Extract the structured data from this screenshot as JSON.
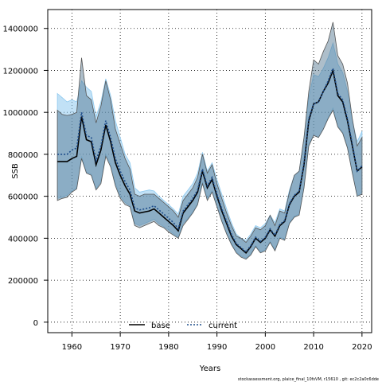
{
  "chart_data": {
    "type": "line",
    "title": "",
    "xlabel": "Years",
    "ylabel": "SSB",
    "xlim": [
      1955,
      2022
    ],
    "ylim": [
      -50000,
      1490000
    ],
    "xticks": [
      1960,
      1970,
      1980,
      1990,
      2000,
      2010,
      2020
    ],
    "yticks": [
      0,
      200000,
      400000,
      600000,
      800000,
      1000000,
      1200000,
      1400000
    ],
    "grid": true,
    "legend_position": "bottom",
    "footer_text": "stockassessment.org, plaice_final_10fsVM, r15610 , git: ec2c2a0c6dde",
    "years": [
      1957,
      1958,
      1959,
      1960,
      1961,
      1962,
      1963,
      1964,
      1965,
      1966,
      1967,
      1968,
      1969,
      1970,
      1971,
      1972,
      1973,
      1974,
      1975,
      1976,
      1977,
      1978,
      1979,
      1980,
      1981,
      1982,
      1983,
      1984,
      1985,
      1986,
      1987,
      1988,
      1989,
      1990,
      1991,
      1992,
      1993,
      1994,
      1995,
      1996,
      1997,
      1998,
      1999,
      2000,
      2001,
      2002,
      2003,
      2004,
      2005,
      2006,
      2007,
      2008,
      2009,
      2010,
      2011,
      2012,
      2013,
      2014,
      2015,
      2016,
      2017,
      2018,
      2019,
      2020
    ],
    "series": [
      {
        "name": "base",
        "color": "#000000",
        "dash": "solid",
        "band_color": "#4a6f8a",
        "values": [
          765000,
          765000,
          765000,
          780000,
          790000,
          980000,
          870000,
          860000,
          750000,
          820000,
          940000,
          860000,
          760000,
          700000,
          650000,
          610000,
          530000,
          520000,
          525000,
          530000,
          540000,
          520000,
          500000,
          480000,
          460000,
          435000,
          520000,
          550000,
          580000,
          620000,
          720000,
          640000,
          680000,
          600000,
          530000,
          470000,
          410000,
          370000,
          350000,
          330000,
          360000,
          400000,
          380000,
          400000,
          440000,
          410000,
          460000,
          480000,
          560000,
          600000,
          620000,
          750000,
          960000,
          1040000,
          1050000,
          1100000,
          1140000,
          1200000,
          1080000,
          1050000,
          960000,
          840000,
          720000,
          740000
        ],
        "lower": [
          580000,
          590000,
          595000,
          620000,
          635000,
          780000,
          710000,
          700000,
          630000,
          660000,
          790000,
          740000,
          650000,
          590000,
          560000,
          550000,
          460000,
          450000,
          460000,
          470000,
          480000,
          460000,
          450000,
          430000,
          415000,
          400000,
          460000,
          490000,
          520000,
          560000,
          660000,
          580000,
          620000,
          550000,
          480000,
          420000,
          370000,
          330000,
          310000,
          300000,
          320000,
          360000,
          330000,
          340000,
          380000,
          340000,
          400000,
          390000,
          470000,
          500000,
          510000,
          640000,
          840000,
          890000,
          880000,
          920000,
          970000,
          1010000,
          930000,
          900000,
          830000,
          710000,
          600000,
          610000
        ],
        "upper": [
          1010000,
          990000,
          985000,
          990000,
          1000000,
          1260000,
          1080000,
          1060000,
          950000,
          1030000,
          1150000,
          1060000,
          920000,
          850000,
          780000,
          730000,
          610000,
          600000,
          610000,
          610000,
          610000,
          590000,
          570000,
          550000,
          530000,
          500000,
          580000,
          610000,
          640000,
          690000,
          800000,
          710000,
          750000,
          660000,
          590000,
          520000,
          460000,
          410000,
          400000,
          380000,
          410000,
          450000,
          440000,
          460000,
          510000,
          460000,
          530000,
          520000,
          620000,
          700000,
          720000,
          880000,
          1100000,
          1250000,
          1230000,
          1290000,
          1340000,
          1430000,
          1270000,
          1230000,
          1140000,
          970000,
          840000,
          880000
        ]
      },
      {
        "name": "current",
        "color": "#1f4e8c",
        "dash": "dotted",
        "band_color": "#8ec9ef",
        "values": [
          800000,
          800000,
          800000,
          820000,
          830000,
          1000000,
          890000,
          880000,
          770000,
          840000,
          960000,
          880000,
          780000,
          720000,
          670000,
          630000,
          545000,
          535000,
          540000,
          545000,
          555000,
          535000,
          515000,
          495000,
          475000,
          445000,
          530000,
          560000,
          590000,
          630000,
          730000,
          650000,
          690000,
          610000,
          540000,
          480000,
          420000,
          375000,
          355000,
          335000,
          365000,
          405000,
          385000,
          405000,
          445000,
          415000,
          465000,
          485000,
          565000,
          605000,
          625000,
          760000,
          970000,
          1040000,
          1050000,
          1100000,
          1150000,
          1210000,
          1090000,
          1060000,
          970000,
          850000,
          720000,
          745000
        ],
        "lower": [
          590000,
          595000,
          605000,
          625000,
          640000,
          790000,
          715000,
          705000,
          635000,
          670000,
          800000,
          750000,
          660000,
          600000,
          570000,
          555000,
          470000,
          460000,
          470000,
          480000,
          490000,
          470000,
          455000,
          440000,
          420000,
          405000,
          470000,
          495000,
          525000,
          565000,
          665000,
          590000,
          625000,
          555000,
          485000,
          425000,
          375000,
          335000,
          315000,
          305000,
          325000,
          365000,
          335000,
          345000,
          385000,
          345000,
          405000,
          395000,
          475000,
          505000,
          515000,
          645000,
          850000,
          890000,
          880000,
          920000,
          975000,
          1020000,
          935000,
          905000,
          835000,
          715000,
          600000,
          620000
        ],
        "upper": [
          1090000,
          1070000,
          1050000,
          1060000,
          1050000,
          1150000,
          1120000,
          1100000,
          980000,
          1050000,
          1160000,
          1080000,
          960000,
          880000,
          800000,
          760000,
          640000,
          620000,
          625000,
          630000,
          625000,
          600000,
          580000,
          560000,
          540000,
          515000,
          600000,
          630000,
          660000,
          710000,
          810000,
          720000,
          760000,
          680000,
          610000,
          540000,
          475000,
          420000,
          400000,
          390000,
          420000,
          460000,
          450000,
          470000,
          510000,
          475000,
          540000,
          530000,
          630000,
          700000,
          720000,
          880000,
          1070000,
          1180000,
          1170000,
          1210000,
          1260000,
          1330000,
          1230000,
          1190000,
          1100000,
          960000,
          860000,
          910000
        ]
      }
    ]
  }
}
